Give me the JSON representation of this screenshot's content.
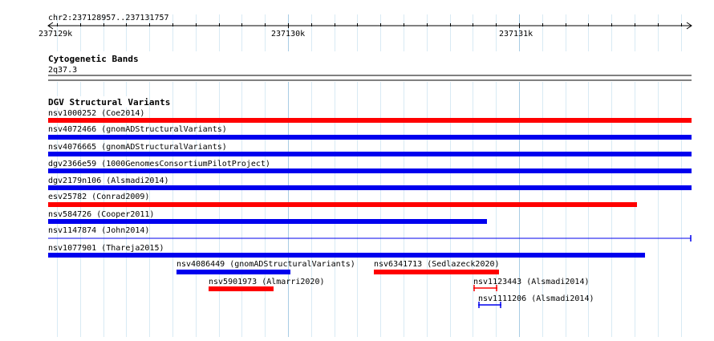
{
  "ruler": {
    "location": "chr2:237128957..237131757",
    "ticks": [
      "237129k",
      "237130k",
      "237131k"
    ]
  },
  "tracks": {
    "cytoband": {
      "title": "Cytogenetic Bands",
      "band": "2q37.3"
    },
    "dgv": {
      "title": "DGV Structural Variants",
      "features": [
        {
          "label": "nsv1000252 (Coe2014)",
          "color": "#ff0000",
          "style": "thick",
          "truncated_right": false
        },
        {
          "label": "nsv4072466 (gnomADStructuralVariants)",
          "color": "#0000ee",
          "style": "thick",
          "truncated_right": false
        },
        {
          "label": "nsv4076665 (gnomADStructuralVariants)",
          "color": "#0000ee",
          "style": "thick",
          "truncated_right": false
        },
        {
          "label": "dgv2366e59 (1000GenomesConsortiumPilotProject)",
          "color": "#0000ee",
          "style": "thick",
          "truncated_right": false
        },
        {
          "label": "dgv2179n106 (Alsmadi2014)",
          "color": "#0000ee",
          "style": "thick",
          "truncated_right": false
        },
        {
          "label": "esv25782 (Conrad2009)",
          "color": "#ff0000",
          "style": "thick",
          "truncated_right": false
        },
        {
          "label": "nsv584726 (Cooper2011)",
          "color": "#0000ee",
          "style": "thick",
          "truncated_right": false
        },
        {
          "label": "nsv1147874 (John2014)",
          "color": "#0000ee",
          "style": "thin",
          "truncated_right": true
        },
        {
          "label": "nsv1077901 (Thareja2015)",
          "color": "#0000ee",
          "style": "thick",
          "truncated_right": false
        },
        {
          "label": "nsv4086449 (gnomADStructuralVariants)",
          "color": "#0000ee",
          "style": "thick",
          "truncated_right": false
        },
        {
          "label": "nsv6341713 (Sedlazeck2020)",
          "color": "#ff0000",
          "style": "thick",
          "truncated_right": false
        },
        {
          "label": "nsv5901973 (Almarri2020)",
          "color": "#ff0000",
          "style": "thick",
          "truncated_right": false
        },
        {
          "label": "nsv1123443 (Alsmadi2014)",
          "color": "#ff0000",
          "style": "capped",
          "truncated_right": false
        },
        {
          "label": "nsv1111206 (Alsmadi2014)",
          "color": "#0000ee",
          "style": "capped",
          "truncated_right": false
        }
      ]
    }
  },
  "colors": {
    "grid_minor": "#d8eaf4",
    "grid_major": "#a8cce4",
    "gain": "#0000ee",
    "loss": "#ff0000"
  }
}
